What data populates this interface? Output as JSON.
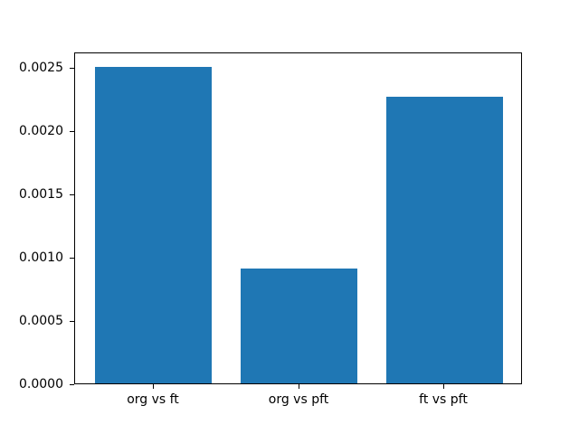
{
  "chart_data": {
    "type": "bar",
    "title": "",
    "xlabel": "",
    "ylabel": "",
    "categories": [
      "org vs ft",
      "org vs pft",
      "ft vs pft"
    ],
    "values": [
      0.0025,
      0.00091,
      0.00227
    ],
    "ylim": [
      0,
      0.002625
    ],
    "yticks": [
      0,
      0.0005,
      0.001,
      0.0015,
      0.002,
      0.0025
    ],
    "ytick_labels": [
      "0.0000",
      "0.0005",
      "0.0010",
      "0.0015",
      "0.0020",
      "0.0025"
    ],
    "bar_color": "#1f77b4",
    "axis_color": "#000000",
    "background_color": "#ffffff",
    "grid": false,
    "legend": null
  }
}
